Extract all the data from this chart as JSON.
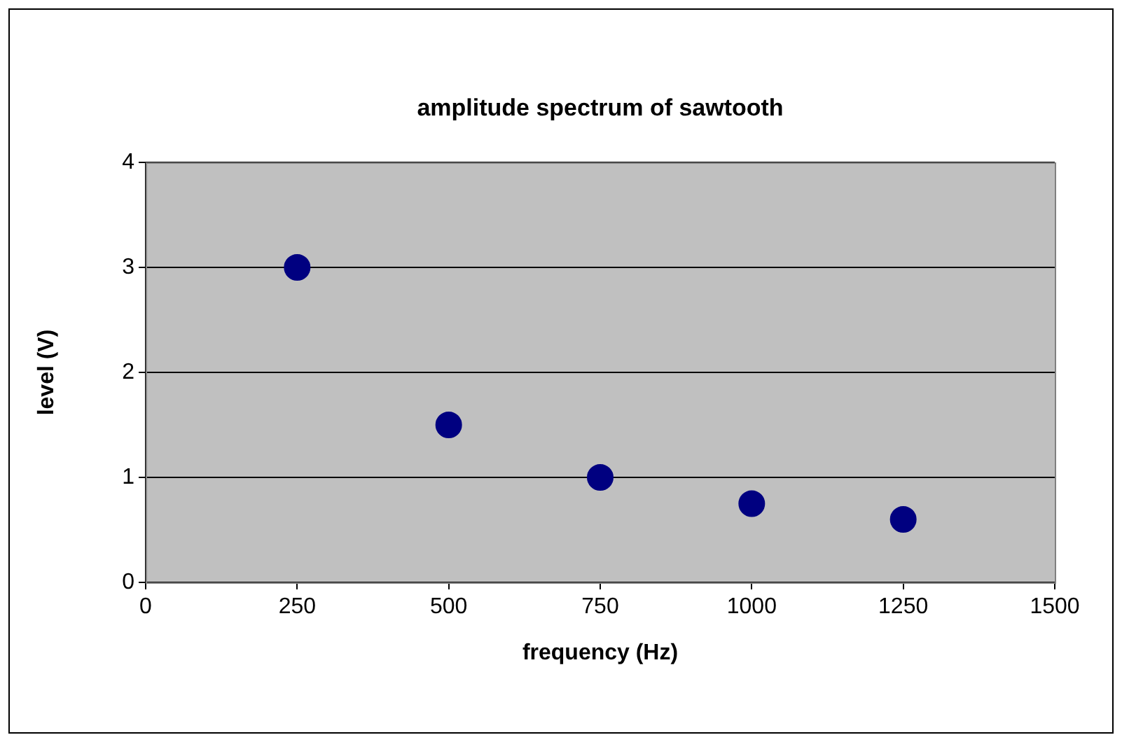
{
  "chart_data": {
    "type": "scatter",
    "title": "amplitude spectrum of sawtooth",
    "xlabel": "frequency (Hz)",
    "ylabel": "level (V)",
    "x": [
      250,
      500,
      750,
      1000,
      1250
    ],
    "series": [
      {
        "color": "#000080",
        "values": [
          3,
          1.5,
          1,
          0.75,
          0.6
        ]
      }
    ],
    "xlim": [
      0,
      1500
    ],
    "xticks": [
      0,
      250,
      500,
      750,
      1000,
      1250,
      1500
    ],
    "ylim": [
      0,
      4
    ],
    "yticks": [
      0,
      1,
      2,
      3,
      4
    ],
    "grid": "y",
    "marker": "circle"
  }
}
